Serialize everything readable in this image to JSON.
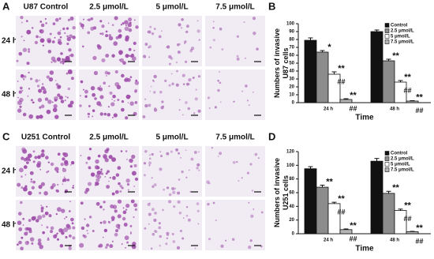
{
  "micrographs": [
    {
      "panel": "A",
      "columns": [
        "U87 Control",
        "2.5 μmol/L",
        "5 μmol/L",
        "7.5 μmol/L"
      ],
      "rows": [
        "24 h",
        "48 h"
      ]
    },
    {
      "panel": "C",
      "columns": [
        "U251 Control",
        "2.5 μmol/L",
        "5 μmol/L",
        "7.5 μmol/L"
      ],
      "rows": [
        "24 h",
        "48 h"
      ]
    }
  ],
  "chart_data": [
    {
      "type": "bar",
      "panel": "B",
      "y_label": "Numbers of invasive U87 cells",
      "x_label": "Time",
      "categories": [
        "24 h",
        "48 h"
      ],
      "ylim": [
        0,
        100
      ],
      "yticks": [
        0,
        10,
        20,
        30,
        40,
        50,
        60,
        70,
        80,
        90,
        100
      ],
      "legend": "top-right",
      "series": [
        {
          "name": "Control",
          "color": "#111111",
          "values": [
            79,
            90
          ],
          "errors": [
            3,
            2
          ]
        },
        {
          "name": "2.5 μmol/L",
          "color": "#8c8c8c",
          "values": [
            64,
            53
          ],
          "errors": [
            2,
            2
          ],
          "stars": [
            "*",
            "**"
          ]
        },
        {
          "name": "5 μmol/L",
          "color": "#ffffff",
          "values": [
            36,
            26
          ],
          "errors": [
            3,
            2
          ],
          "stars": [
            "**",
            "**"
          ],
          "hashes": [
            "##",
            "##"
          ]
        },
        {
          "name": "7.5 μmol/L",
          "color": "#b5b5b5",
          "values": [
            4,
            2
          ],
          "errors": [
            1,
            0.5
          ],
          "stars": [
            "**",
            "**"
          ],
          "hashes": [
            "##",
            "##"
          ]
        }
      ]
    },
    {
      "type": "bar",
      "panel": "D",
      "y_label": "Numbers of invasive U251 cells",
      "x_label": "Time",
      "categories": [
        "24 h",
        "48 h"
      ],
      "ylim": [
        0,
        120
      ],
      "yticks": [
        0,
        20,
        40,
        60,
        80,
        100,
        120
      ],
      "legend": "top-right",
      "series": [
        {
          "name": "Control",
          "color": "#111111",
          "values": [
            95,
            106
          ],
          "errors": [
            3,
            4
          ]
        },
        {
          "name": "2.5 μmol/L",
          "color": "#8c8c8c",
          "values": [
            68,
            59
          ],
          "errors": [
            3,
            3
          ],
          "stars": [
            "**",
            "**"
          ]
        },
        {
          "name": "5 μmol/L",
          "color": "#ffffff",
          "values": [
            44,
            34
          ],
          "errors": [
            2,
            2
          ],
          "stars": [
            "**",
            "**"
          ],
          "hashes": [
            "##",
            "##"
          ]
        },
        {
          "name": "7.5 μmol/L",
          "color": "#b5b5b5",
          "values": [
            6,
            3
          ],
          "errors": [
            1,
            0.5
          ],
          "stars": [
            "**",
            "**"
          ],
          "hashes": [
            "##",
            "##"
          ]
        }
      ]
    }
  ]
}
